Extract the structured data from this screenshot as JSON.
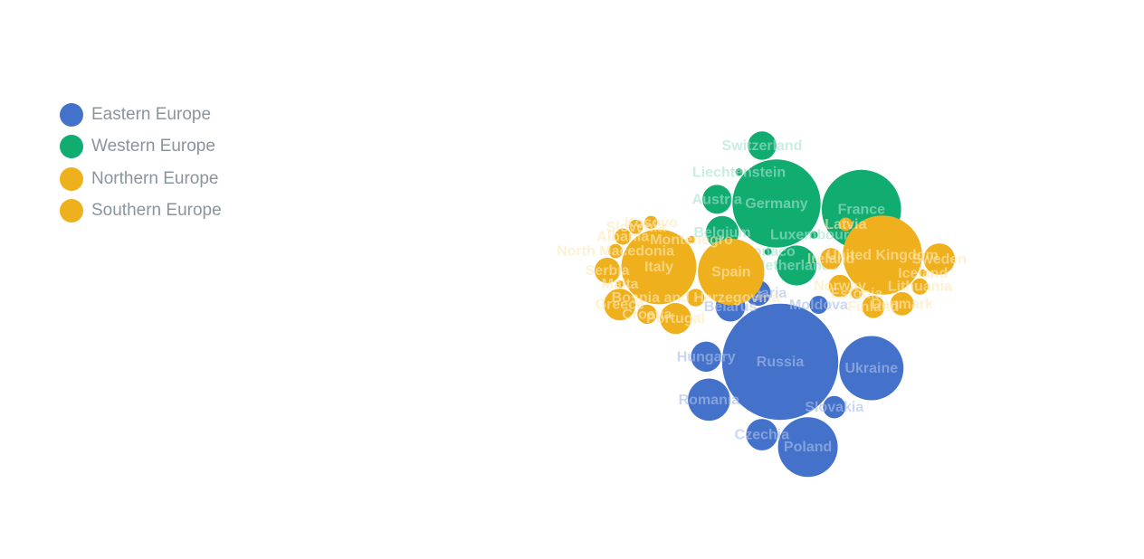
{
  "legend": [
    {
      "name": "Eastern Europe",
      "color": "#4472ca"
    },
    {
      "name": "Western Europe",
      "color": "#10ac70"
    },
    {
      "name": "Northern Europe",
      "color": "#efb01e"
    },
    {
      "name": "Southern Europe",
      "color": "#efb01e"
    }
  ],
  "chart_data": {
    "type": "packed-bubble",
    "grid": false,
    "legend_position": "top-left",
    "series": [
      {
        "name": "Eastern Europe",
        "color": "#4472ca",
        "label_color": "#a9bfe6",
        "points": [
          {
            "name": "Russia",
            "value": 144
          },
          {
            "name": "Ukraine",
            "value": 44
          },
          {
            "name": "Poland",
            "value": 38
          },
          {
            "name": "Romania",
            "value": 19
          },
          {
            "name": "Czechia",
            "value": 10.6
          },
          {
            "name": "Hungary",
            "value": 9.8
          },
          {
            "name": "Belarus",
            "value": 9.4
          },
          {
            "name": "Bulgaria",
            "value": 7
          },
          {
            "name": "Slovakia",
            "value": 5.4
          },
          {
            "name": "Moldova",
            "value": 3.5
          }
        ]
      },
      {
        "name": "Western Europe",
        "color": "#10ac70",
        "label_color": "#a6e2cf",
        "points": [
          {
            "name": "Germany",
            "value": 83
          },
          {
            "name": "France",
            "value": 67
          },
          {
            "name": "Netherlands",
            "value": 17
          },
          {
            "name": "Belgium",
            "value": 11.5
          },
          {
            "name": "Austria",
            "value": 8.9
          },
          {
            "name": "Switzerland",
            "value": 8.6
          },
          {
            "name": "Luxembourg",
            "value": 0.6
          },
          {
            "name": "Monaco",
            "value": 0.04
          },
          {
            "name": "Liechtenstein",
            "value": 0.04
          }
        ]
      },
      {
        "name": "Northern Europe",
        "color": "#efb01e",
        "label_color": "#fde9b8",
        "points": [
          {
            "name": "United Kingdom",
            "value": 67
          },
          {
            "name": "Sweden",
            "value": 10.4
          },
          {
            "name": "Denmark",
            "value": 5.8
          },
          {
            "name": "Finland",
            "value": 5.5
          },
          {
            "name": "Norway",
            "value": 5.4
          },
          {
            "name": "Ireland",
            "value": 4.9
          },
          {
            "name": "Lithuania",
            "value": 2.8
          },
          {
            "name": "Latvia",
            "value": 1.9
          },
          {
            "name": "Estonia",
            "value": 1.3
          },
          {
            "name": "Iceland",
            "value": 0.36
          }
        ]
      },
      {
        "name": "Southern Europe",
        "color": "#efb01e",
        "label_color": "#fde9b8",
        "points": [
          {
            "name": "Italy",
            "value": 60
          },
          {
            "name": "Spain",
            "value": 47
          },
          {
            "name": "Greece",
            "value": 10.7
          },
          {
            "name": "Portugal",
            "value": 10.3
          },
          {
            "name": "Serbia",
            "value": 6.9
          },
          {
            "name": "Croatia",
            "value": 4
          },
          {
            "name": "Bosnia and Herzegovina",
            "value": 3.3
          },
          {
            "name": "Albania",
            "value": 2.8
          },
          {
            "name": "North Macedonia",
            "value": 2.1
          },
          {
            "name": "Slovenia",
            "value": 2.1
          },
          {
            "name": "Kosovo",
            "value": 1.8
          },
          {
            "name": "Montenegro",
            "value": 0.6
          },
          {
            "name": "Malta",
            "value": 0.5
          }
        ]
      }
    ]
  }
}
